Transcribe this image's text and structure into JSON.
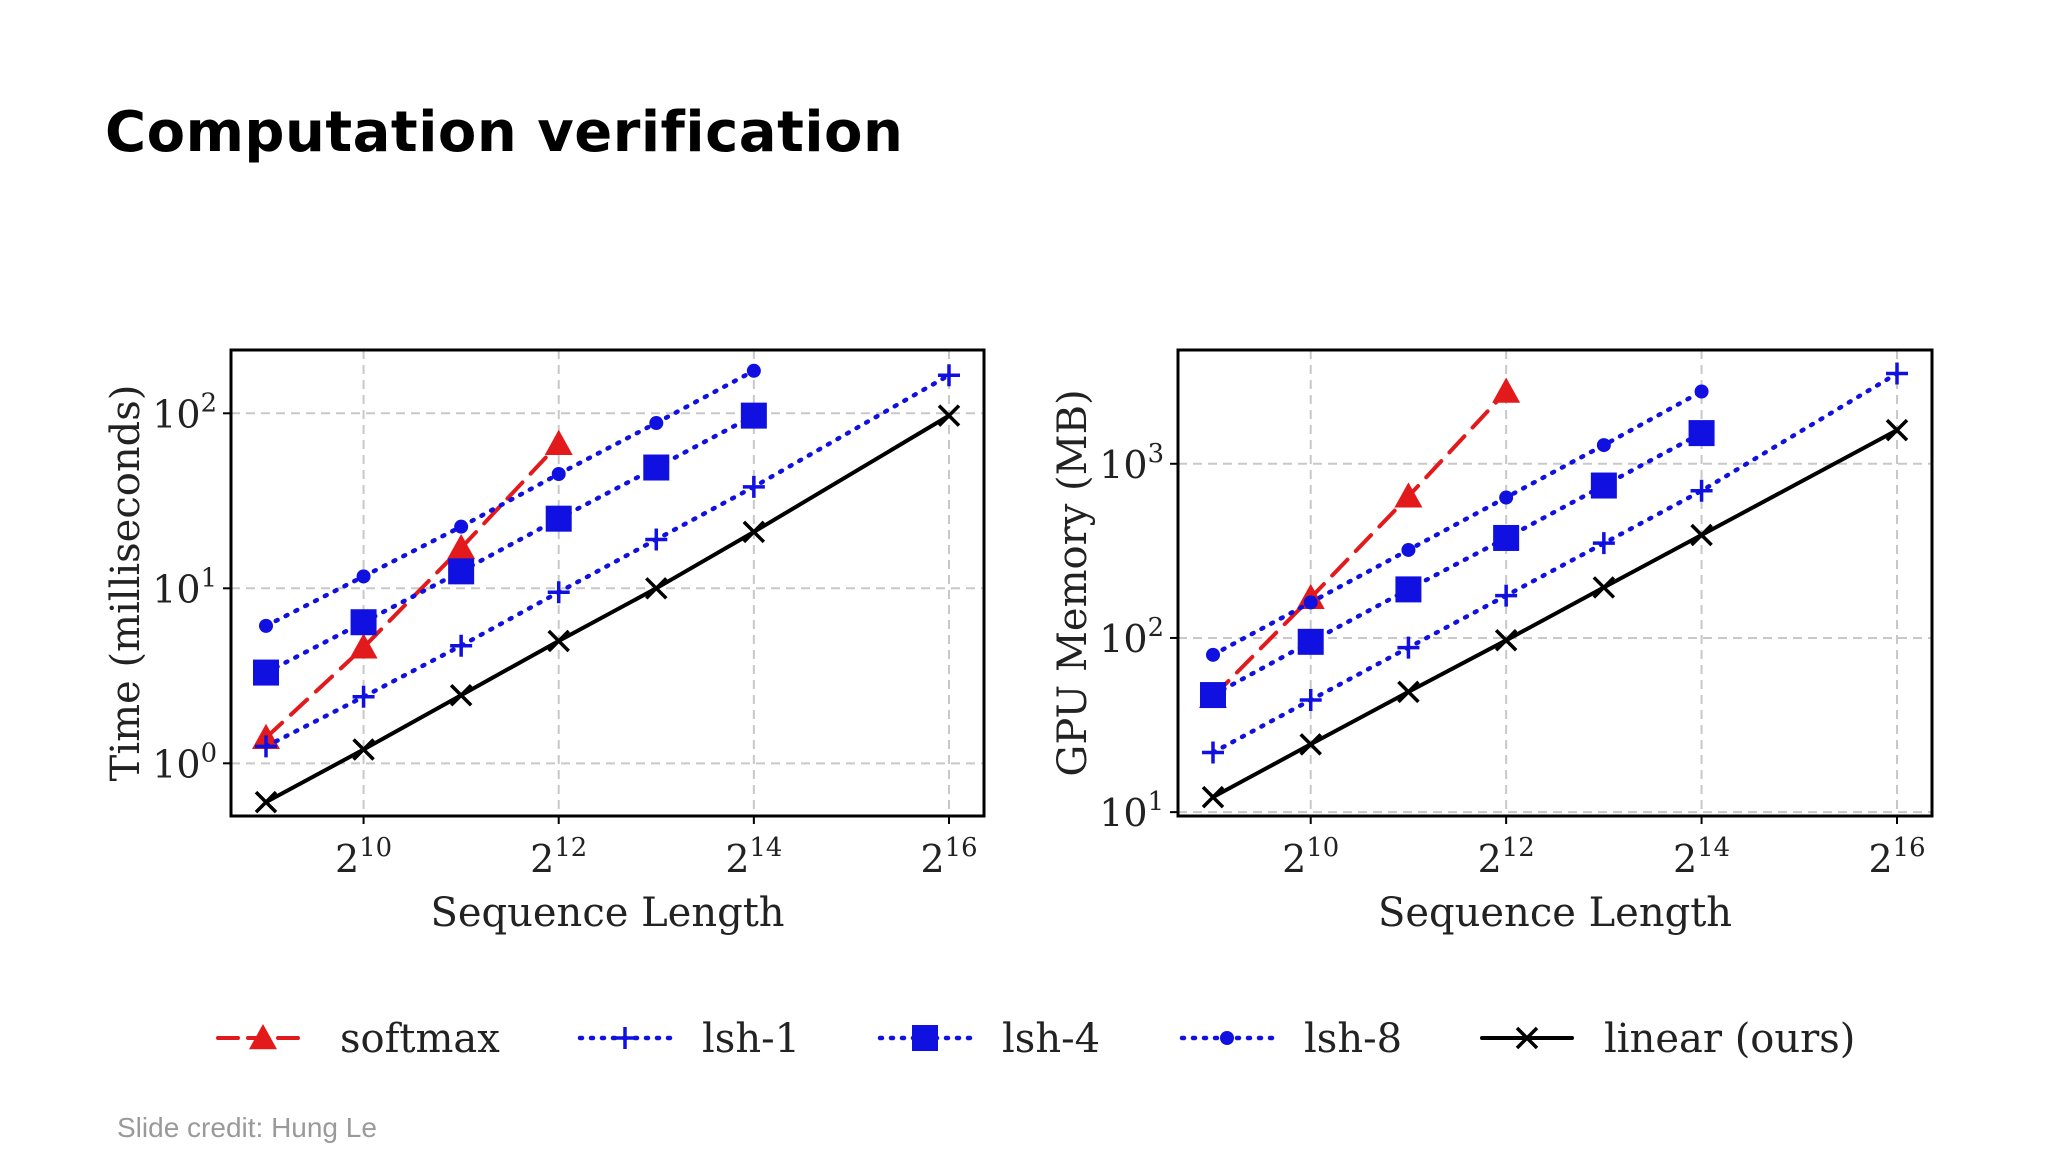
{
  "slide": {
    "title": "Computation verification",
    "credit": "Slide credit: Hung Le"
  },
  "colors": {
    "softmax": "#e31a1c",
    "lsh": "#1010e0",
    "linear": "#000000",
    "grid": "#c8c8c8"
  },
  "chart_data": [
    {
      "type": "line",
      "title": "",
      "xlabel": "Sequence Length",
      "ylabel": "Time (milliseconds)",
      "x_scale": "log2",
      "y_scale": "log10",
      "xlim": [
        512,
        65536
      ],
      "ylim": [
        0.5,
        230
      ],
      "x_ticks": [
        {
          "value": 1024,
          "base": "2",
          "exp": "10"
        },
        {
          "value": 4096,
          "base": "2",
          "exp": "12"
        },
        {
          "value": 16384,
          "base": "2",
          "exp": "14"
        },
        {
          "value": 65536,
          "base": "2",
          "exp": "16"
        }
      ],
      "y_ticks": [
        {
          "value": 1,
          "base": "10",
          "exp": "0"
        },
        {
          "value": 10,
          "base": "10",
          "exp": "1"
        },
        {
          "value": 100,
          "base": "10",
          "exp": "2"
        }
      ],
      "grid": true,
      "series": [
        {
          "key": "softmax",
          "x": [
            512,
            1024,
            2048,
            4096
          ],
          "y": [
            1.4,
            4.6,
            17,
            67
          ]
        },
        {
          "key": "lsh8",
          "x": [
            512,
            1024,
            2048,
            4096,
            8192,
            16384
          ],
          "y": [
            6.1,
            11.7,
            22.5,
            45,
            88,
            175
          ]
        },
        {
          "key": "lsh4",
          "x": [
            512,
            1024,
            2048,
            4096,
            8192,
            16384
          ],
          "y": [
            3.3,
            6.4,
            12.5,
            25,
            49,
            97
          ]
        },
        {
          "key": "lsh1",
          "x": [
            512,
            1024,
            2048,
            4096,
            8192,
            16384,
            65536
          ],
          "y": [
            1.25,
            2.4,
            4.7,
            9.5,
            19,
            38,
            165
          ]
        },
        {
          "key": "linear",
          "x": [
            512,
            1024,
            2048,
            4096,
            8192,
            16384,
            65536
          ],
          "y": [
            0.6,
            1.2,
            2.45,
            5,
            10,
            21,
            97
          ]
        }
      ]
    },
    {
      "type": "line",
      "title": "",
      "xlabel": "Sequence Length",
      "ylabel": "GPU Memory (MB)",
      "x_scale": "log2",
      "y_scale": "log10",
      "xlim": [
        512,
        65536
      ],
      "ylim": [
        9.5,
        4500
      ],
      "x_ticks": [
        {
          "value": 1024,
          "base": "2",
          "exp": "10"
        },
        {
          "value": 4096,
          "base": "2",
          "exp": "12"
        },
        {
          "value": 16384,
          "base": "2",
          "exp": "14"
        },
        {
          "value": 65536,
          "base": "2",
          "exp": "16"
        }
      ],
      "y_ticks": [
        {
          "value": 10,
          "base": "10",
          "exp": "1"
        },
        {
          "value": 100,
          "base": "10",
          "exp": "2"
        },
        {
          "value": 1000,
          "base": "10",
          "exp": "3"
        }
      ],
      "grid": true,
      "series": [
        {
          "key": "softmax",
          "x": [
            512,
            1024,
            2048,
            4096
          ],
          "y": [
            46,
            170,
            650,
            2600
          ]
        },
        {
          "key": "lsh8",
          "x": [
            512,
            1024,
            2048,
            4096,
            8192,
            16384
          ],
          "y": [
            80,
            160,
            320,
            640,
            1280,
            2600
          ]
        },
        {
          "key": "lsh4",
          "x": [
            512,
            1024,
            2048,
            4096,
            8192,
            16384
          ],
          "y": [
            47,
            95,
            190,
            375,
            750,
            1500
          ]
        },
        {
          "key": "lsh1",
          "x": [
            512,
            1024,
            2048,
            4096,
            8192,
            16384,
            65536
          ],
          "y": [
            22,
            44,
            88,
            175,
            350,
            700,
            3300
          ]
        },
        {
          "key": "linear",
          "x": [
            512,
            1024,
            2048,
            4096,
            8192,
            16384,
            65536
          ],
          "y": [
            12.2,
            24.5,
            49,
            97,
            195,
            390,
            1560
          ]
        }
      ]
    }
  ],
  "legend": {
    "placement": "bottom",
    "items": [
      {
        "key": "softmax",
        "label": "softmax"
      },
      {
        "key": "lsh1",
        "label": "lsh-1"
      },
      {
        "key": "lsh4",
        "label": "lsh-4"
      },
      {
        "key": "lsh8",
        "label": "lsh-8"
      },
      {
        "key": "linear",
        "label": "linear (ours)"
      }
    ]
  }
}
